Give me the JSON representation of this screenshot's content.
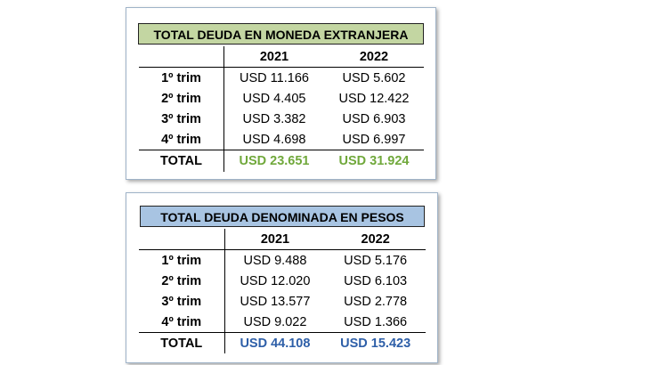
{
  "colors": {
    "banner_green": "#c3d6a2",
    "banner_blue": "#a8c4e2",
    "total_green": "#70a83b",
    "total_blue": "#2e5fa8"
  },
  "tables": [
    {
      "title": "TOTAL DEUDA EN MONEDA EXTRANJERA",
      "columns": [
        "2021",
        "2022"
      ],
      "rows": [
        {
          "label": "1º trim",
          "v2021": "USD 11.166",
          "v2022": "USD 5.602"
        },
        {
          "label": "2º trim",
          "v2021": "USD 4.405",
          "v2022": "USD 12.422"
        },
        {
          "label": "3º trim",
          "v2021": "USD 3.382",
          "v2022": "USD 6.903"
        },
        {
          "label": "4º trim",
          "v2021": "USD 4.698",
          "v2022": "USD 6.997"
        }
      ],
      "total": {
        "label": "TOTAL",
        "v2021": "USD 23.651",
        "v2022": "USD 31.924"
      }
    },
    {
      "title": "TOTAL DEUDA DENOMINADA EN PESOS",
      "columns": [
        "2021",
        "2022"
      ],
      "rows": [
        {
          "label": "1º trim",
          "v2021": "USD 9.488",
          "v2022": "USD 5.176"
        },
        {
          "label": "2º trim",
          "v2021": "USD 12.020",
          "v2022": "USD 6.103"
        },
        {
          "label": "3º trim",
          "v2021": "USD 13.577",
          "v2022": "USD 2.778"
        },
        {
          "label": "4º trim",
          "v2021": "USD 9.022",
          "v2022": "USD 1.366"
        }
      ],
      "total": {
        "label": "TOTAL",
        "v2021": "USD 44.108",
        "v2022": "USD 15.423"
      }
    }
  ]
}
